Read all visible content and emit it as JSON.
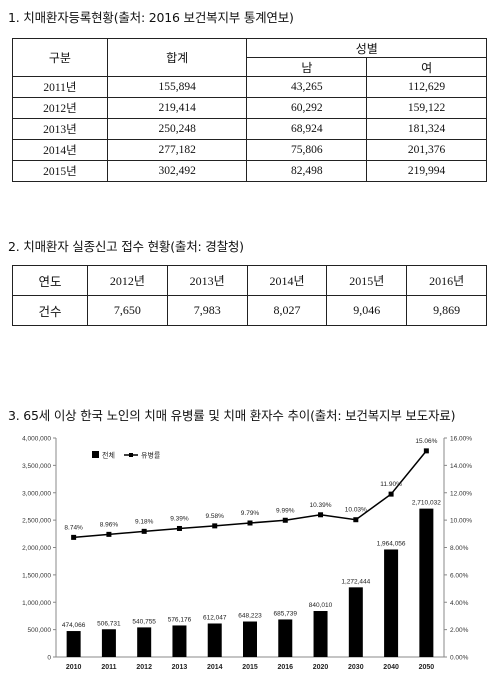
{
  "section1": {
    "heading": "1. 치매환자등록현황(출처: 2016 보건복지부 통계연보)",
    "headers": {
      "category": "구분",
      "total": "합계",
      "gender": "성별",
      "male": "남",
      "female": "여"
    },
    "rows": [
      {
        "year": "2011년",
        "total": "155,894",
        "male": "43,265",
        "female": "112,629"
      },
      {
        "year": "2012년",
        "total": "219,414",
        "male": "60,292",
        "female": "159,122"
      },
      {
        "year": "2013년",
        "total": "250,248",
        "male": "68,924",
        "female": "181,324"
      },
      {
        "year": "2014년",
        "total": "277,182",
        "male": "75,806",
        "female": "201,376"
      },
      {
        "year": "2015년",
        "total": "302,492",
        "male": "82,498",
        "female": "219,994"
      }
    ]
  },
  "section2": {
    "heading": "2. 치매환자 실종신고 접수 현황(출처: 경찰청)",
    "header_label": "연도",
    "years": [
      "2012년",
      "2013년",
      "2014년",
      "2015년",
      "2016년"
    ],
    "row_label": "건수",
    "counts": [
      "7,650",
      "7,983",
      "8,027",
      "9,046",
      "9,869"
    ]
  },
  "section3": {
    "heading": "3. 65세 이상 한국 노인의 치매 유병률 및 치매 환자수 추이(출처: 보건복지부 보도자료)"
  },
  "chart_data": {
    "type": "bar",
    "title": "",
    "categories": [
      "2010",
      "2011",
      "2012",
      "2013",
      "2014",
      "2015",
      "2016",
      "2020",
      "2030",
      "2040",
      "2050"
    ],
    "series": [
      {
        "name": "전체",
        "type": "bar",
        "axis": "left",
        "values": [
          474066,
          506731,
          540755,
          576176,
          612047,
          648223,
          685739,
          840010,
          1272444,
          1964056,
          2710032
        ],
        "labels": [
          "474,066",
          "506,731",
          "540,755",
          "576,176",
          "612,047",
          "648,223",
          "685,739",
          "840,010",
          "1,272,444",
          "1,964,056",
          "2,710,032"
        ],
        "color": "#000000"
      },
      {
        "name": "유병률",
        "type": "line",
        "axis": "right",
        "values": [
          8.74,
          8.96,
          9.18,
          9.39,
          9.58,
          9.79,
          9.99,
          10.39,
          10.03,
          11.9,
          15.06
        ],
        "labels": [
          "8.74%",
          "8.96%",
          "9.18%",
          "9.39%",
          "9.58%",
          "9.79%",
          "9.99%",
          "10.39%",
          "10.03%",
          "11.90%",
          "15.06%"
        ],
        "color": "#000000"
      }
    ],
    "ylim_left": [
      0,
      4000000
    ],
    "yticks_left": [
      "0",
      "500,000",
      "1,000,000",
      "1,500,000",
      "2,000,000",
      "2,500,000",
      "3,000,000",
      "3,500,000",
      "4,000,000"
    ],
    "ylim_right": [
      0,
      16
    ],
    "yticks_right": [
      "0.00%",
      "2.00%",
      "4.00%",
      "6.00%",
      "8.00%",
      "10.00%",
      "12.00%",
      "14.00%",
      "16.00%"
    ],
    "grid": false,
    "legend": "top-left"
  }
}
